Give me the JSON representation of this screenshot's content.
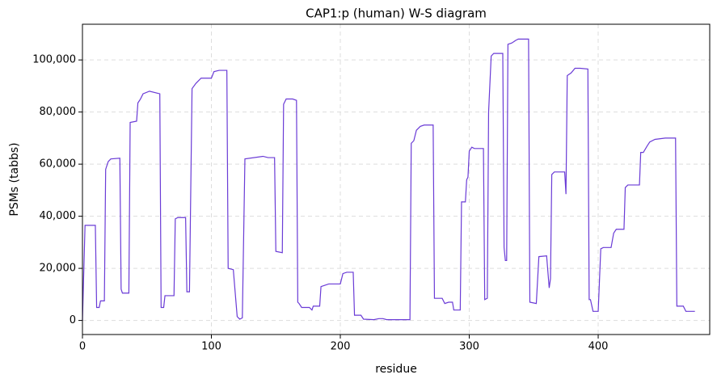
{
  "chart_data": {
    "type": "line",
    "title": "CAP1:p (human) W-S diagram",
    "x_label": "residue",
    "y_label": "PSMs (tabbs)",
    "color": "#6a3bd6",
    "grid": true,
    "x": [
      0,
      2,
      10,
      11,
      13,
      14,
      17,
      18,
      20,
      22,
      29,
      30,
      31,
      36,
      37,
      42,
      43,
      45,
      47,
      52,
      60,
      61,
      63,
      64,
      71,
      72,
      74,
      80,
      81,
      83,
      85,
      88,
      92,
      100,
      102,
      106,
      112,
      113,
      117,
      120,
      122,
      124,
      126,
      140,
      144,
      149,
      150,
      155,
      156,
      158,
      163,
      166,
      167,
      168,
      170,
      176,
      178,
      179,
      184,
      185,
      188,
      191,
      200,
      202,
      205,
      210,
      211,
      216,
      218,
      226,
      230,
      233,
      236,
      254,
      255,
      257,
      259,
      262,
      265,
      272,
      273,
      279,
      281,
      284,
      287,
      288,
      293,
      294,
      297,
      298,
      299,
      300,
      302,
      304,
      311,
      312,
      314,
      315,
      317,
      319,
      326,
      327,
      328,
      329,
      330,
      333,
      336,
      338,
      346,
      347,
      352,
      354,
      360,
      362,
      363,
      364,
      366,
      374,
      375,
      376,
      379,
      382,
      386,
      392,
      393,
      394,
      396,
      400,
      402,
      404,
      410,
      412,
      414,
      420,
      421,
      423,
      432,
      433,
      435,
      438,
      440,
      444,
      452,
      460,
      461,
      466,
      468,
      475
    ],
    "values": [
      0,
      36500,
      36500,
      5000,
      5000,
      7500,
      7500,
      58000,
      61000,
      62000,
      62300,
      12000,
      10500,
      10500,
      76000,
      76500,
      83500,
      85000,
      87000,
      88000,
      87000,
      5000,
      5000,
      9500,
      9500,
      39000,
      39500,
      39500,
      11000,
      11000,
      89000,
      91000,
      93000,
      93000,
      95500,
      96000,
      96000,
      20000,
      19500,
      1500,
      500,
      1000,
      62000,
      63000,
      62500,
      62500,
      26500,
      26000,
      83000,
      85000,
      85000,
      84500,
      7000,
      6500,
      5000,
      5000,
      4000,
      5500,
      5500,
      13000,
      13500,
      14000,
      14000,
      18000,
      18500,
      18500,
      2000,
      2000,
      500,
      300,
      700,
      700,
      300,
      300,
      68000,
      69000,
      73000,
      74500,
      75000,
      75000,
      8500,
      8500,
      6500,
      7000,
      7000,
      4000,
      4000,
      45500,
      45500,
      54000,
      55000,
      65000,
      66500,
      66000,
      66000,
      8000,
      8500,
      80000,
      101500,
      102500,
      102500,
      28000,
      23000,
      23000,
      106000,
      106500,
      107500,
      108000,
      108000,
      7000,
      6500,
      24500,
      24800,
      12500,
      16000,
      56000,
      57000,
      57000,
      48500,
      94000,
      95000,
      96800,
      96800,
      96500,
      8000,
      8000,
      3500,
      3500,
      27500,
      28000,
      28000,
      33500,
      35000,
      35000,
      51000,
      52000,
      52000,
      64500,
      64500,
      67000,
      68500,
      69500,
      70000,
      70000,
      5500,
      5500,
      3500,
      3500
    ],
    "xlim": [
      0,
      486.5
    ],
    "ylim": [
      -5400,
      113700
    ],
    "xticks": [
      0,
      100,
      200,
      300,
      400
    ],
    "yticks": [
      0,
      {
        "value": 20000,
        "label": "20,000"
      },
      {
        "value": 40000,
        "label": "40,000"
      },
      {
        "value": 60000,
        "label": "60,000"
      },
      {
        "value": 80000,
        "label": "80,000"
      },
      {
        "value": 100000,
        "label": "100,000"
      }
    ]
  }
}
